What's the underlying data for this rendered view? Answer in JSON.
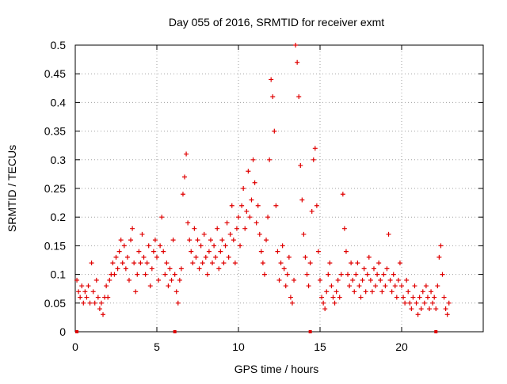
{
  "chart_data": {
    "type": "scatter",
    "title": "Day 055 of 2016, SRMTID for receiver exmt",
    "xlabel": "GPS time / hours",
    "ylabel": "SRMTID / TECUs",
    "xlim": [
      0,
      25
    ],
    "ylim": [
      0,
      0.5
    ],
    "xticks": [
      0,
      5,
      10,
      15,
      20
    ],
    "yticks": [
      0,
      0.05,
      0.1,
      0.15,
      0.2,
      0.25,
      0.3,
      0.35,
      0.4,
      0.45,
      0.5
    ],
    "xtick_labels": [
      "0",
      "5",
      "10",
      "15",
      "20"
    ],
    "ytick_labels": [
      "0",
      "0.05",
      "0.1",
      "0.15",
      "0.2",
      "0.25",
      "0.3",
      "0.35",
      "0.4",
      "0.45",
      "0.5"
    ],
    "grid": true,
    "marker": "plus",
    "color": "#e00000",
    "series": [
      {
        "name": "SRMTID",
        "points": [
          [
            0.1,
            0.09
          ],
          [
            0.2,
            0.07
          ],
          [
            0.3,
            0.06
          ],
          [
            0.4,
            0.08
          ],
          [
            0.5,
            0.05
          ],
          [
            0.6,
            0.07
          ],
          [
            0.7,
            0.06
          ],
          [
            0.8,
            0.08
          ],
          [
            0.9,
            0.05
          ],
          [
            1.0,
            0.12
          ],
          [
            1.1,
            0.07
          ],
          [
            1.2,
            0.05
          ],
          [
            1.3,
            0.09
          ],
          [
            1.4,
            0.06
          ],
          [
            1.5,
            0.04
          ],
          [
            1.6,
            0.05
          ],
          [
            1.7,
            0.03
          ],
          [
            1.8,
            0.06
          ],
          [
            1.9,
            0.08
          ],
          [
            2.0,
            0.06
          ],
          [
            2.1,
            0.09
          ],
          [
            2.2,
            0.1
          ],
          [
            2.3,
            0.12
          ],
          [
            2.4,
            0.1
          ],
          [
            2.5,
            0.13
          ],
          [
            2.6,
            0.11
          ],
          [
            2.7,
            0.14
          ],
          [
            2.8,
            0.16
          ],
          [
            2.9,
            0.12
          ],
          [
            3.0,
            0.15
          ],
          [
            3.1,
            0.11
          ],
          [
            3.2,
            0.13
          ],
          [
            3.3,
            0.09
          ],
          [
            3.4,
            0.16
          ],
          [
            3.5,
            0.18
          ],
          [
            3.6,
            0.12
          ],
          [
            3.7,
            0.07
          ],
          [
            3.8,
            0.1
          ],
          [
            3.9,
            0.14
          ],
          [
            4.0,
            0.12
          ],
          [
            4.1,
            0.17
          ],
          [
            4.2,
            0.13
          ],
          [
            4.3,
            0.1
          ],
          [
            4.4,
            0.12
          ],
          [
            4.5,
            0.15
          ],
          [
            4.6,
            0.08
          ],
          [
            4.7,
            0.11
          ],
          [
            4.8,
            0.14
          ],
          [
            4.9,
            0.16
          ],
          [
            5.0,
            0.13
          ],
          [
            5.1,
            0.09
          ],
          [
            5.2,
            0.15
          ],
          [
            5.3,
            0.2
          ],
          [
            5.4,
            0.14
          ],
          [
            5.5,
            0.1
          ],
          [
            5.6,
            0.12
          ],
          [
            5.7,
            0.08
          ],
          [
            5.8,
            0.11
          ],
          [
            5.9,
            0.09
          ],
          [
            6.0,
            0.16
          ],
          [
            6.1,
            0.1
          ],
          [
            6.2,
            0.07
          ],
          [
            6.3,
            0.05
          ],
          [
            6.4,
            0.09
          ],
          [
            6.5,
            0.11
          ],
          [
            6.6,
            0.24
          ],
          [
            6.7,
            0.27
          ],
          [
            6.8,
            0.31
          ],
          [
            6.9,
            0.19
          ],
          [
            7.0,
            0.16
          ],
          [
            7.1,
            0.14
          ],
          [
            7.2,
            0.12
          ],
          [
            7.3,
            0.18
          ],
          [
            7.4,
            0.13
          ],
          [
            7.5,
            0.16
          ],
          [
            7.6,
            0.11
          ],
          [
            7.7,
            0.15
          ],
          [
            7.8,
            0.12
          ],
          [
            7.9,
            0.17
          ],
          [
            8.0,
            0.13
          ],
          [
            8.1,
            0.1
          ],
          [
            8.2,
            0.14
          ],
          [
            8.3,
            0.16
          ],
          [
            8.4,
            0.12
          ],
          [
            8.5,
            0.15
          ],
          [
            8.6,
            0.13
          ],
          [
            8.7,
            0.18
          ],
          [
            8.8,
            0.11
          ],
          [
            8.9,
            0.14
          ],
          [
            9.0,
            0.16
          ],
          [
            9.1,
            0.12
          ],
          [
            9.2,
            0.15
          ],
          [
            9.3,
            0.19
          ],
          [
            9.4,
            0.13
          ],
          [
            9.5,
            0.17
          ],
          [
            9.6,
            0.22
          ],
          [
            9.7,
            0.16
          ],
          [
            9.8,
            0.12
          ],
          [
            9.9,
            0.18
          ],
          [
            10.0,
            0.2
          ],
          [
            10.1,
            0.15
          ],
          [
            10.2,
            0.22
          ],
          [
            10.3,
            0.25
          ],
          [
            10.4,
            0.18
          ],
          [
            10.5,
            0.21
          ],
          [
            10.6,
            0.28
          ],
          [
            10.7,
            0.2
          ],
          [
            10.8,
            0.23
          ],
          [
            10.9,
            0.3
          ],
          [
            11.0,
            0.26
          ],
          [
            11.1,
            0.19
          ],
          [
            11.2,
            0.22
          ],
          [
            11.3,
            0.17
          ],
          [
            11.4,
            0.14
          ],
          [
            11.5,
            0.12
          ],
          [
            11.6,
            0.1
          ],
          [
            11.7,
            0.16
          ],
          [
            11.8,
            0.2
          ],
          [
            11.9,
            0.3
          ],
          [
            12.0,
            0.44
          ],
          [
            12.1,
            0.41
          ],
          [
            12.2,
            0.35
          ],
          [
            12.3,
            0.22
          ],
          [
            12.4,
            0.14
          ],
          [
            12.5,
            0.09
          ],
          [
            12.6,
            0.12
          ],
          [
            12.7,
            0.15
          ],
          [
            12.8,
            0.11
          ],
          [
            12.9,
            0.08
          ],
          [
            13.0,
            0.1
          ],
          [
            13.1,
            0.13
          ],
          [
            13.2,
            0.06
          ],
          [
            13.3,
            0.05
          ],
          [
            13.4,
            0.09
          ],
          [
            13.5,
            0.5
          ],
          [
            13.6,
            0.47
          ],
          [
            13.7,
            0.41
          ],
          [
            13.8,
            0.29
          ],
          [
            13.9,
            0.23
          ],
          [
            14.0,
            0.17
          ],
          [
            14.1,
            0.13
          ],
          [
            14.2,
            0.1
          ],
          [
            14.3,
            0.08
          ],
          [
            14.4,
            0.12
          ],
          [
            14.5,
            0.21
          ],
          [
            14.6,
            0.3
          ],
          [
            14.7,
            0.32
          ],
          [
            14.8,
            0.22
          ],
          [
            14.9,
            0.14
          ],
          [
            15.0,
            0.09
          ],
          [
            15.1,
            0.06
          ],
          [
            15.2,
            0.05
          ],
          [
            15.3,
            0.04
          ],
          [
            15.4,
            0.07
          ],
          [
            15.5,
            0.1
          ],
          [
            15.6,
            0.12
          ],
          [
            15.7,
            0.08
          ],
          [
            15.8,
            0.06
          ],
          [
            15.9,
            0.05
          ],
          [
            16.0,
            0.07
          ],
          [
            16.1,
            0.09
          ],
          [
            16.2,
            0.06
          ],
          [
            16.3,
            0.1
          ],
          [
            16.4,
            0.24
          ],
          [
            16.5,
            0.18
          ],
          [
            16.6,
            0.14
          ],
          [
            16.7,
            0.1
          ],
          [
            16.8,
            0.08
          ],
          [
            16.9,
            0.12
          ],
          [
            17.0,
            0.09
          ],
          [
            17.1,
            0.07
          ],
          [
            17.2,
            0.1
          ],
          [
            17.3,
            0.12
          ],
          [
            17.4,
            0.08
          ],
          [
            17.5,
            0.06
          ],
          [
            17.6,
            0.09
          ],
          [
            17.7,
            0.11
          ],
          [
            17.8,
            0.07
          ],
          [
            17.9,
            0.1
          ],
          [
            18.0,
            0.13
          ],
          [
            18.1,
            0.09
          ],
          [
            18.2,
            0.07
          ],
          [
            18.3,
            0.11
          ],
          [
            18.4,
            0.08
          ],
          [
            18.5,
            0.1
          ],
          [
            18.6,
            0.12
          ],
          [
            18.7,
            0.09
          ],
          [
            18.8,
            0.07
          ],
          [
            18.9,
            0.1
          ],
          [
            19.0,
            0.08
          ],
          [
            19.1,
            0.11
          ],
          [
            19.2,
            0.17
          ],
          [
            19.3,
            0.09
          ],
          [
            19.4,
            0.07
          ],
          [
            19.5,
            0.1
          ],
          [
            19.6,
            0.08
          ],
          [
            19.7,
            0.06
          ],
          [
            19.8,
            0.09
          ],
          [
            19.9,
            0.12
          ],
          [
            20.0,
            0.08
          ],
          [
            20.1,
            0.06
          ],
          [
            20.2,
            0.05
          ],
          [
            20.3,
            0.09
          ],
          [
            20.4,
            0.07
          ],
          [
            20.5,
            0.05
          ],
          [
            20.6,
            0.04
          ],
          [
            20.7,
            0.06
          ],
          [
            20.8,
            0.08
          ],
          [
            20.9,
            0.05
          ],
          [
            21.0,
            0.03
          ],
          [
            21.1,
            0.06
          ],
          [
            21.2,
            0.04
          ],
          [
            21.3,
            0.07
          ],
          [
            21.4,
            0.05
          ],
          [
            21.5,
            0.08
          ],
          [
            21.6,
            0.06
          ],
          [
            21.7,
            0.04
          ],
          [
            21.8,
            0.07
          ],
          [
            21.9,
            0.05
          ],
          [
            22.0,
            0.06
          ],
          [
            22.1,
            0.04
          ],
          [
            22.2,
            0.08
          ],
          [
            22.3,
            0.13
          ],
          [
            22.4,
            0.15
          ],
          [
            22.5,
            0.1
          ],
          [
            22.6,
            0.06
          ],
          [
            22.7,
            0.04
          ],
          [
            22.8,
            0.03
          ],
          [
            22.9,
            0.05
          ]
        ]
      }
    ],
    "axis_markers": {
      "name": "data-gap-markers",
      "x": [
        0.1,
        6.1,
        14.4,
        22.1
      ]
    }
  }
}
